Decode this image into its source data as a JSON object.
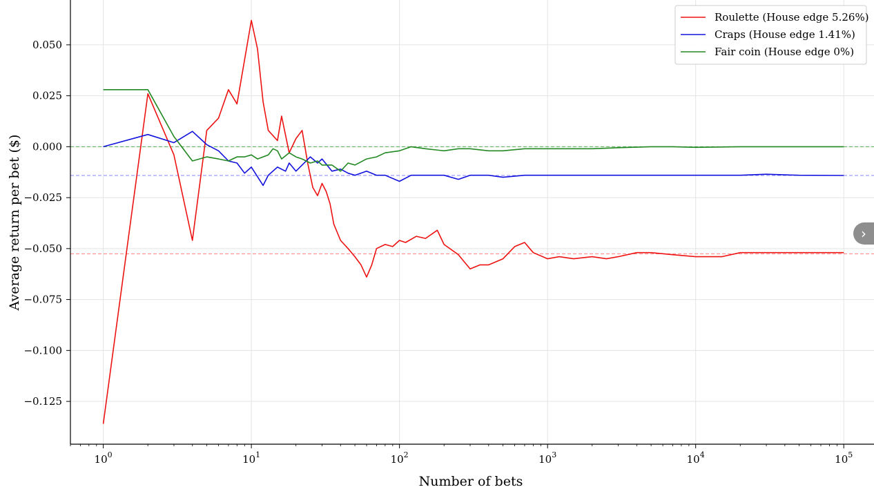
{
  "chart_data": {
    "type": "line",
    "title": "",
    "xlabel": "Number of bets",
    "ylabel": "Average return per bet ($)",
    "x_scale": "log",
    "xlim": [
      0.6,
      160000
    ],
    "ylim": [
      -0.146,
      0.072
    ],
    "x_ticks": [
      {
        "value": 1,
        "base": "10",
        "exp": "0"
      },
      {
        "value": 10,
        "base": "10",
        "exp": "1"
      },
      {
        "value": 100,
        "base": "10",
        "exp": "2"
      },
      {
        "value": 1000,
        "base": "10",
        "exp": "3"
      },
      {
        "value": 10000,
        "base": "10",
        "exp": "4"
      },
      {
        "value": 100000,
        "base": "10",
        "exp": "5"
      }
    ],
    "y_ticks": [
      {
        "value": 0.05,
        "label": "0.050"
      },
      {
        "value": 0.025,
        "label": "0.025"
      },
      {
        "value": 0.0,
        "label": "0.000"
      },
      {
        "value": -0.025,
        "label": "−0.025"
      },
      {
        "value": -0.05,
        "label": "−0.050"
      },
      {
        "value": -0.075,
        "label": "−0.075"
      },
      {
        "value": -0.1,
        "label": "−0.100"
      },
      {
        "value": -0.125,
        "label": "−0.125"
      }
    ],
    "grid": true,
    "legend_position": "top-right",
    "reference_lines": [
      {
        "y": 0.0,
        "color": "#2ca02c",
        "style": "dashed"
      },
      {
        "y": -0.0141,
        "color": "#6666ff",
        "style": "dashed"
      },
      {
        "y": -0.0526,
        "color": "#ff6666",
        "style": "dashed"
      }
    ],
    "series": [
      {
        "name": "Roulette (House edge 5.26%)",
        "color": "#ee1111",
        "x": [
          1,
          2,
          3,
          4,
          5,
          6,
          7,
          8,
          10,
          11,
          12,
          13,
          15,
          16,
          18,
          20,
          22,
          24,
          26,
          28,
          30,
          32,
          34,
          36,
          40,
          45,
          50,
          55,
          60,
          65,
          70,
          80,
          90,
          100,
          110,
          130,
          150,
          180,
          200,
          250,
          300,
          350,
          400,
          500,
          600,
          700,
          800,
          1000,
          1200,
          1500,
          2000,
          2500,
          3000,
          4000,
          5000,
          7000,
          10000,
          15000,
          20000,
          30000,
          50000,
          70000,
          100000
        ],
        "y": [
          -0.136,
          0.026,
          -0.004,
          -0.046,
          0.008,
          0.014,
          0.028,
          0.021,
          0.062,
          0.048,
          0.022,
          0.008,
          0.003,
          0.015,
          -0.003,
          0.004,
          0.008,
          -0.008,
          -0.02,
          -0.024,
          -0.018,
          -0.022,
          -0.028,
          -0.038,
          -0.046,
          -0.05,
          -0.054,
          -0.058,
          -0.064,
          -0.058,
          -0.05,
          -0.048,
          -0.049,
          -0.046,
          -0.047,
          -0.044,
          -0.045,
          -0.041,
          -0.048,
          -0.053,
          -0.06,
          -0.058,
          -0.058,
          -0.055,
          -0.049,
          -0.047,
          -0.052,
          -0.055,
          -0.054,
          -0.055,
          -0.054,
          -0.055,
          -0.054,
          -0.052,
          -0.052,
          -0.053,
          -0.054,
          -0.054,
          -0.052,
          -0.052,
          -0.052,
          -0.052,
          -0.052
        ]
      },
      {
        "name": "Craps (House edge 1.41%)",
        "color": "#1111dd",
        "x": [
          1,
          2,
          3,
          4,
          5,
          6,
          7,
          8,
          9,
          10,
          12,
          13,
          15,
          17,
          18,
          20,
          22,
          25,
          28,
          30,
          35,
          40,
          45,
          50,
          60,
          70,
          80,
          100,
          120,
          150,
          200,
          250,
          300,
          400,
          500,
          700,
          1000,
          2000,
          3000,
          5000,
          10000,
          20000,
          30000,
          50000,
          100000
        ],
        "y": [
          0.0,
          0.006,
          0.002,
          0.0075,
          0.001,
          -0.002,
          -0.007,
          -0.008,
          -0.013,
          -0.01,
          -0.019,
          -0.014,
          -0.01,
          -0.012,
          -0.008,
          -0.012,
          -0.009,
          -0.005,
          -0.008,
          -0.006,
          -0.012,
          -0.011,
          -0.013,
          -0.014,
          -0.012,
          -0.014,
          -0.014,
          -0.017,
          -0.014,
          -0.014,
          -0.014,
          -0.016,
          -0.014,
          -0.014,
          -0.015,
          -0.014,
          -0.014,
          -0.014,
          -0.014,
          -0.014,
          -0.014,
          -0.014,
          -0.0135,
          -0.014,
          -0.0141
        ]
      },
      {
        "name": "Fair coin (House edge 0%)",
        "color": "#228822",
        "x": [
          1,
          2,
          3,
          4,
          5,
          6,
          7,
          8,
          9,
          10,
          11,
          12,
          13,
          14,
          15,
          16,
          18,
          20,
          22,
          25,
          28,
          30,
          35,
          40,
          45,
          50,
          60,
          70,
          80,
          100,
          120,
          150,
          200,
          250,
          300,
          400,
          500,
          700,
          1000,
          2000,
          3000,
          5000,
          7000,
          10000,
          20000,
          50000,
          100000
        ],
        "y": [
          0.028,
          0.028,
          0.005,
          -0.007,
          -0.005,
          -0.006,
          -0.007,
          -0.005,
          -0.005,
          -0.004,
          -0.006,
          -0.005,
          -0.004,
          -0.001,
          -0.002,
          -0.006,
          -0.003,
          -0.005,
          -0.006,
          -0.008,
          -0.007,
          -0.009,
          -0.009,
          -0.012,
          -0.008,
          -0.009,
          -0.006,
          -0.005,
          -0.003,
          -0.002,
          0.0,
          -0.001,
          -0.002,
          -0.001,
          -0.001,
          -0.002,
          -0.002,
          -0.001,
          -0.001,
          -0.001,
          -0.0005,
          0.0,
          0.0,
          -0.0003,
          0.0,
          0.0,
          0.0
        ]
      }
    ]
  },
  "nav": {
    "next_label": "›"
  }
}
